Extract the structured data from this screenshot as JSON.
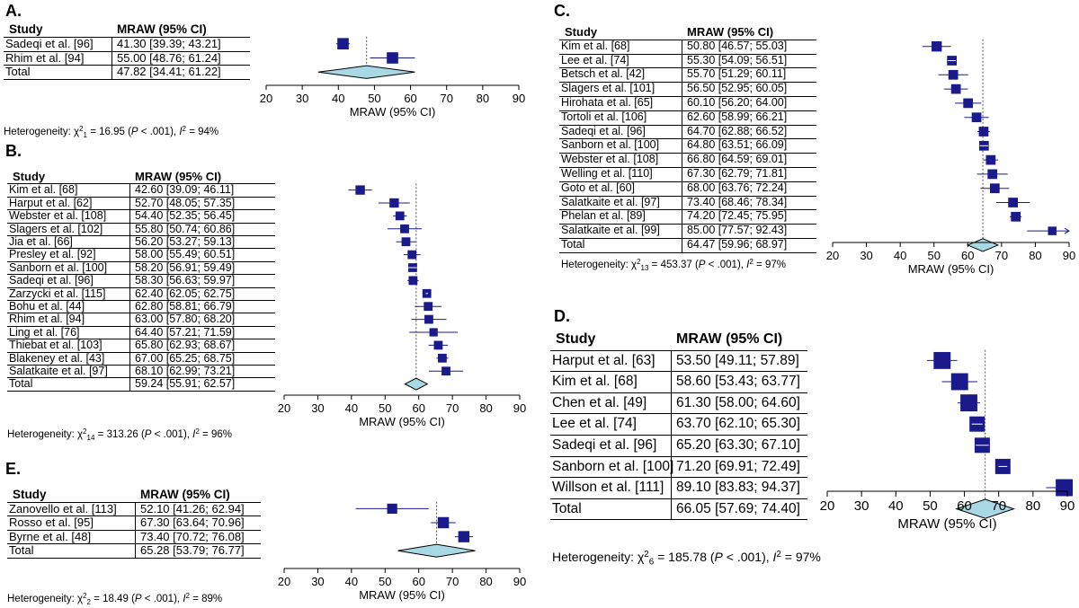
{
  "chart_data": [
    {
      "type": "forest",
      "panel": "A.",
      "col_study": "Study",
      "col_effect": "MRAW (95% CI)",
      "xlabel": "MRAW (95% CI)",
      "xlim": [
        20,
        90
      ],
      "ticks": [
        20,
        30,
        40,
        50,
        60,
        70,
        80,
        90
      ],
      "ref_line": 47.82,
      "studies": [
        {
          "name": "Sadeqi et al. [96]",
          "ci_text": "41.30 [39.39; 43.21]",
          "est": 41.3,
          "lo": 39.39,
          "hi": 43.21,
          "weight": 1.0
        },
        {
          "name": "Rhim et al. [94]",
          "ci_text": "55.00 [48.76; 61.24]",
          "est": 55.0,
          "lo": 48.76,
          "hi": 61.24,
          "weight": 1.0
        }
      ],
      "total": {
        "name": "Total",
        "ci_text": "47.82 [34.41; 61.22]",
        "est": 47.82,
        "lo": 34.41,
        "hi": 61.22
      },
      "het": {
        "prefix": "Heterogeneity: χ",
        "df": "1",
        "stat": " = 16.95 (",
        "p": "P",
        "p_rest": " < .001), ",
        "i": "I",
        "i_rest": " = 94%"
      }
    },
    {
      "type": "forest",
      "panel": "B.",
      "col_study": "Study",
      "col_effect": "MRAW (95% CI)",
      "xlabel": "MRAW (95% CI)",
      "xlim": [
        20,
        90
      ],
      "ticks": [
        20,
        30,
        40,
        50,
        60,
        70,
        80,
        90
      ],
      "ref_line": 59.24,
      "studies": [
        {
          "name": "Kim et al. [68]",
          "ci_text": "42.60 [39.09; 46.11]",
          "est": 42.6,
          "lo": 39.09,
          "hi": 46.11,
          "weight": 0.9
        },
        {
          "name": "Harput et al. [62]",
          "ci_text": "52.70 [48.05; 57.35]",
          "est": 52.7,
          "lo": 48.05,
          "hi": 57.35,
          "weight": 0.9
        },
        {
          "name": "Webster et al. [108]",
          "ci_text": "54.40 [52.35; 56.45]",
          "est": 54.4,
          "lo": 52.35,
          "hi": 56.45,
          "weight": 0.85
        },
        {
          "name": "Slagers et al. [102]",
          "ci_text": "55.80 [50.74; 60.86]",
          "est": 55.8,
          "lo": 50.74,
          "hi": 60.86,
          "weight": 0.85
        },
        {
          "name": "Jia et al. [66]",
          "ci_text": "56.20 [53.27; 59.13]",
          "est": 56.2,
          "lo": 53.27,
          "hi": 59.13,
          "weight": 0.85
        },
        {
          "name": "Presley et al. [92]",
          "ci_text": "58.00 [55.49; 60.51]",
          "est": 58.0,
          "lo": 55.49,
          "hi": 60.51,
          "weight": 0.85
        },
        {
          "name": "Sanborn et al. [100]",
          "ci_text": "58.20 [56.91; 59.49]",
          "est": 58.2,
          "lo": 56.91,
          "hi": 59.49,
          "weight": 0.85
        },
        {
          "name": "Sadeqi et al. [96]",
          "ci_text": "58.30 [56.63; 59.97]",
          "est": 58.3,
          "lo": 56.63,
          "hi": 59.97,
          "weight": 0.85
        },
        {
          "name": "Zarzycki et al. [115]",
          "ci_text": "62.40 [62.05; 62.75]",
          "est": 62.4,
          "lo": 62.05,
          "hi": 62.75,
          "weight": 0.85
        },
        {
          "name": "Bohu et al. [44]",
          "ci_text": "62.80 [58.81; 66.79]",
          "est": 62.8,
          "lo": 58.81,
          "hi": 66.79,
          "weight": 0.85
        },
        {
          "name": "Rhim et al. [94]",
          "ci_text": "63.00 [57.80; 68.20]",
          "est": 63.0,
          "lo": 57.8,
          "hi": 68.2,
          "weight": 0.85
        },
        {
          "name": "Ling et al. [76]",
          "ci_text": "64.40 [57.21; 71.59]",
          "est": 64.4,
          "lo": 57.21,
          "hi": 71.59,
          "weight": 0.8
        },
        {
          "name": "Thiebat et al. [103]",
          "ci_text": "65.80 [62.93; 68.67]",
          "est": 65.8,
          "lo": 62.93,
          "hi": 68.67,
          "weight": 0.85
        },
        {
          "name": "Blakeney et al. [43]",
          "ci_text": "67.00 [65.25; 68.75]",
          "est": 67.0,
          "lo": 65.25,
          "hi": 68.75,
          "weight": 0.85
        },
        {
          "name": "Salatkaite et al. [97]",
          "ci_text": "68.10 [62.99; 73.21]",
          "est": 68.1,
          "lo": 62.99,
          "hi": 73.21,
          "weight": 0.85
        }
      ],
      "total": {
        "name": "Total",
        "ci_text": "59.24 [55.91; 62.57]",
        "est": 59.24,
        "lo": 55.91,
        "hi": 62.57
      },
      "het": {
        "prefix": "Heterogeneity: χ",
        "df": "14",
        "stat": " = 313.26 (",
        "p": "P",
        "p_rest": " < .001), ",
        "i": "I",
        "i_rest": " = 96%"
      }
    },
    {
      "type": "forest",
      "panel": "C.",
      "col_study": "Study",
      "col_effect": "MRAW (95% CI)",
      "xlabel": "MRAW (95% CI)",
      "xlim": [
        20,
        90
      ],
      "ticks": [
        20,
        30,
        40,
        50,
        60,
        70,
        80,
        90
      ],
      "ref_line": 64.47,
      "studies": [
        {
          "name": "Kim et al. [68]",
          "ci_text": "50.80 [46.57; 55.03]",
          "est": 50.8,
          "lo": 46.57,
          "hi": 55.03,
          "weight": 0.9
        },
        {
          "name": "Lee et al. [74]",
          "ci_text": "55.30 [54.09; 56.51]",
          "est": 55.3,
          "lo": 54.09,
          "hi": 56.51,
          "weight": 0.85
        },
        {
          "name": "Betsch et al. [42]",
          "ci_text": "55.70 [51.29; 60.11]",
          "est": 55.7,
          "lo": 51.29,
          "hi": 60.11,
          "weight": 0.85
        },
        {
          "name": "Slagers et al. [101]",
          "ci_text": "56.50 [52.95; 60.05]",
          "est": 56.5,
          "lo": 52.95,
          "hi": 60.05,
          "weight": 0.85
        },
        {
          "name": "Hirohata et al. [65]",
          "ci_text": "60.10 [56.20; 64.00]",
          "est": 60.1,
          "lo": 56.2,
          "hi": 64.0,
          "weight": 0.85
        },
        {
          "name": "Tortoli et al. [106]",
          "ci_text": "62.60 [58.99; 66.21]",
          "est": 62.6,
          "lo": 58.99,
          "hi": 66.21,
          "weight": 0.85
        },
        {
          "name": "Sadeqi et al. [96]",
          "ci_text": "64.70 [62.88; 66.52]",
          "est": 64.7,
          "lo": 62.88,
          "hi": 66.52,
          "weight": 0.85
        },
        {
          "name": "Sanborn et al. [100]",
          "ci_text": "64.80 [63.51; 66.09]",
          "est": 64.8,
          "lo": 63.51,
          "hi": 66.09,
          "weight": 0.85
        },
        {
          "name": "Webster et al. [108]",
          "ci_text": "66.80 [64.59; 69.01]",
          "est": 66.8,
          "lo": 64.59,
          "hi": 69.01,
          "weight": 0.85
        },
        {
          "name": "Welling et al. [110]",
          "ci_text": "67.30 [62.79; 71.81]",
          "est": 67.3,
          "lo": 62.79,
          "hi": 71.81,
          "weight": 0.85
        },
        {
          "name": "Goto et al. [60]",
          "ci_text": "68.00 [63.76; 72.24]",
          "est": 68.0,
          "lo": 63.76,
          "hi": 72.24,
          "weight": 0.85
        },
        {
          "name": "Salatkaite et al. [97]",
          "ci_text": "73.40 [68.46; 78.34]",
          "est": 73.4,
          "lo": 68.46,
          "hi": 78.34,
          "weight": 0.85
        },
        {
          "name": "Phelan et al. [89]",
          "ci_text": "74.20 [72.45; 75.95]",
          "est": 74.2,
          "lo": 72.45,
          "hi": 75.95,
          "weight": 0.85
        },
        {
          "name": "Salatkaite et al. [99]",
          "ci_text": "85.00 [77.57; 92.43]",
          "est": 85.0,
          "lo": 77.57,
          "hi": 92.43,
          "weight": 0.75
        }
      ],
      "total": {
        "name": "Total",
        "ci_text": "64.47 [59.96; 68.97]",
        "est": 64.47,
        "lo": 59.96,
        "hi": 68.97
      },
      "het": {
        "prefix": "Heterogeneity: χ",
        "df": "13",
        "stat": " = 453.37 (",
        "p": "P",
        "p_rest": " < .001), ",
        "i": "I",
        "i_rest": " = 97%"
      }
    },
    {
      "type": "forest",
      "panel": "D.",
      "col_study": "Study",
      "col_effect": "MRAW (95% CI)",
      "xlabel": "MRAW (95% CI)",
      "xlim": [
        20,
        90
      ],
      "ticks": [
        20,
        30,
        40,
        50,
        60,
        70,
        80,
        90
      ],
      "ref_line": 66.05,
      "studies": [
        {
          "name": "Harput et al. [63]",
          "ci_text": "53.50 [49.11; 57.89]",
          "est": 53.5,
          "lo": 49.11,
          "hi": 57.89,
          "weight": 1.0
        },
        {
          "name": "Kim et al. [68]",
          "ci_text": "58.60 [53.43; 63.77]",
          "est": 58.6,
          "lo": 53.43,
          "hi": 63.77,
          "weight": 1.0
        },
        {
          "name": "Chen et al. [49]",
          "ci_text": "61.30 [58.00; 64.60]",
          "est": 61.3,
          "lo": 58.0,
          "hi": 64.6,
          "weight": 1.0
        },
        {
          "name": "Lee et al. [74]",
          "ci_text": "63.70 [62.10; 65.30]",
          "est": 63.7,
          "lo": 62.1,
          "hi": 65.3,
          "weight": 0.9
        },
        {
          "name": "Sadeqi et al. [96]",
          "ci_text": "65.20 [63.30; 67.10]",
          "est": 65.2,
          "lo": 63.3,
          "hi": 67.1,
          "weight": 0.9
        },
        {
          "name": "Sanborn et al. [100]",
          "ci_text": "71.20 [69.91; 72.49]",
          "est": 71.2,
          "lo": 69.91,
          "hi": 72.49,
          "weight": 0.9
        },
        {
          "name": "Willson et al. [111]",
          "ci_text": "89.10 [83.83; 94.37]",
          "est": 89.1,
          "lo": 83.83,
          "hi": 94.37,
          "weight": 1.0
        }
      ],
      "total": {
        "name": "Total",
        "ci_text": "66.05 [57.69; 74.40]",
        "est": 66.05,
        "lo": 57.69,
        "hi": 74.4
      },
      "het": {
        "prefix": "Heterogeneity: χ",
        "df": "6",
        "stat": " = 185.78 (",
        "p": "P",
        "p_rest": " < .001), ",
        "i": "I",
        "i_rest": " = 97%"
      }
    },
    {
      "type": "forest",
      "panel": "E.",
      "col_study": "Study",
      "col_effect": "MRAW (95% CI)",
      "xlabel": "MRAW (95% CI)",
      "xlim": [
        20,
        90
      ],
      "ticks": [
        20,
        30,
        40,
        50,
        60,
        70,
        80,
        90
      ],
      "ref_line": 65.28,
      "studies": [
        {
          "name": "Zanovello et al. [113]",
          "ci_text": "52.10 [41.26; 62.94]",
          "est": 52.1,
          "lo": 41.26,
          "hi": 62.94,
          "weight": 0.9
        },
        {
          "name": "Rosso et al. [95]",
          "ci_text": "67.30 [63.64; 70.96]",
          "est": 67.3,
          "lo": 63.64,
          "hi": 70.96,
          "weight": 1.0
        },
        {
          "name": "Byrne et al. [48]",
          "ci_text": "73.40 [70.72; 76.08]",
          "est": 73.4,
          "lo": 70.72,
          "hi": 76.08,
          "weight": 1.0
        }
      ],
      "total": {
        "name": "Total",
        "ci_text": "65.28 [53.79; 76.77]",
        "est": 65.28,
        "lo": 53.79,
        "hi": 76.77
      },
      "het": {
        "prefix": "Heterogeneity: χ",
        "df": "2",
        "stat": " = 18.49 (",
        "p": "P",
        "p_rest": " < .001), ",
        "i": "I",
        "i_rest": " = 89%"
      }
    }
  ],
  "colors": {
    "square": "#1a1a8c",
    "diamond": "#a8d8e4",
    "ci_line": "#1a1a8c",
    "ref": "#555555"
  }
}
